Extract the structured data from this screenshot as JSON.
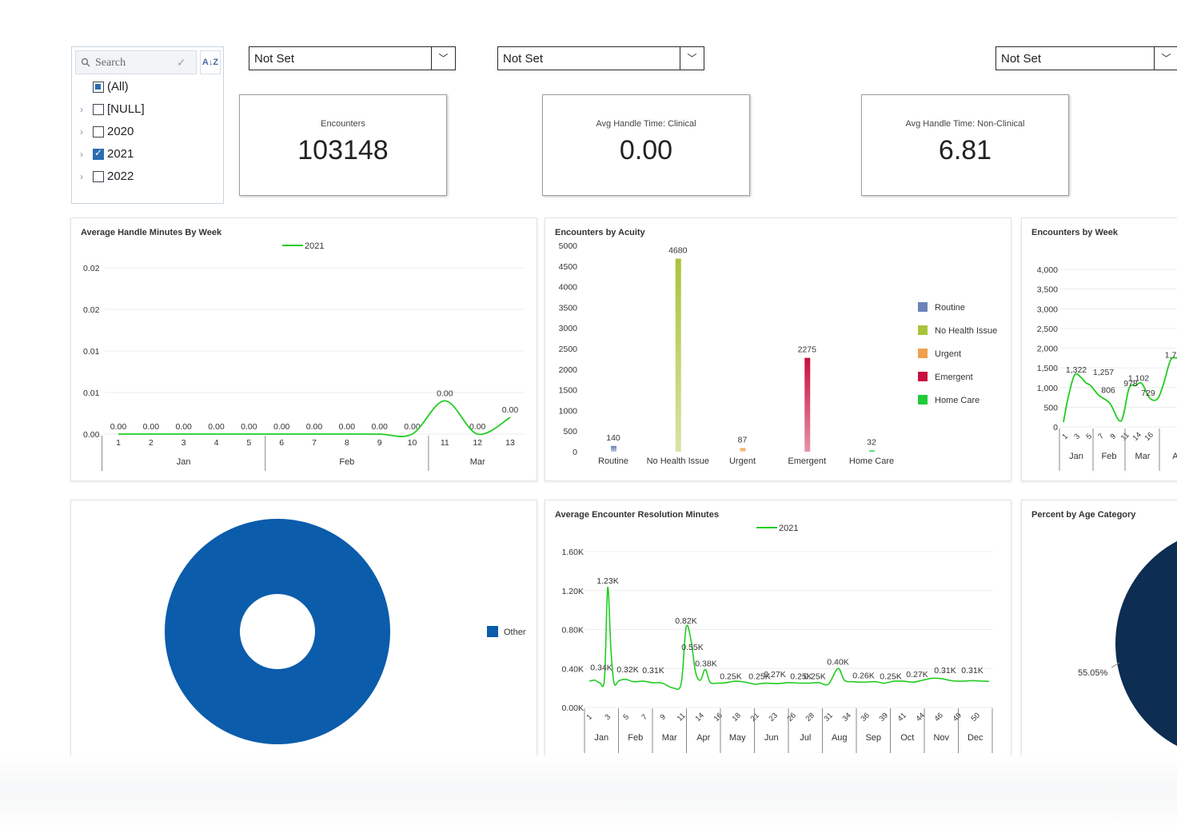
{
  "filter": {
    "search_placeholder": "Search",
    "items": [
      {
        "label": "(All)",
        "state": "partial",
        "expandable": false
      },
      {
        "label": "[NULL]",
        "state": "unchecked",
        "expandable": true
      },
      {
        "label": "2020",
        "state": "unchecked",
        "expandable": true
      },
      {
        "label": "2021",
        "state": "checked",
        "expandable": true
      },
      {
        "label": "2022",
        "state": "unchecked",
        "expandable": true
      }
    ]
  },
  "dropdowns": [
    {
      "value": "Not Set"
    },
    {
      "value": "Not Set"
    },
    {
      "value": "Not Set"
    }
  ],
  "kpis": [
    {
      "title": "Encounters",
      "value": "103148"
    },
    {
      "title": "Avg Handle Time: Clinical",
      "value": "0.00"
    },
    {
      "title": "Avg Handle Time: Non-Clinical",
      "value": "6.81"
    }
  ],
  "charts": {
    "handle": {
      "title": "Average Handle Minutes By Week"
    },
    "acuity": {
      "title": "Encounters by Acuity"
    },
    "week": {
      "title": "Encounters by Week"
    },
    "donut": {
      "title": ""
    },
    "resolution": {
      "title": "Average Encounter Resolution Minutes"
    },
    "age": {
      "title": "Percent by Age Category"
    }
  },
  "colors": {
    "green_line": "#22cc22",
    "donut_blue": "#0b5cab",
    "age_navy": "#0d2d52"
  },
  "chart_data": [
    {
      "id": "handle",
      "type": "line",
      "title": "Average Handle Minutes By Week",
      "series": [
        {
          "name": "2021",
          "values": [
            0,
            0,
            0,
            0,
            0,
            0,
            0,
            0,
            0,
            0,
            0.004,
            0,
            0.002
          ]
        }
      ],
      "x": [
        1,
        2,
        3,
        4,
        5,
        6,
        7,
        8,
        9,
        10,
        11,
        12,
        13
      ],
      "x_groups": [
        {
          "label": "Jan",
          "from": 1,
          "to": 5
        },
        {
          "label": "Feb",
          "from": 6,
          "to": 10
        },
        {
          "label": "Mar",
          "from": 11,
          "to": 13
        }
      ],
      "data_labels": [
        "0.00",
        "0.00",
        "0.00",
        "0.00",
        "0.00",
        "0.00",
        "0.00",
        "0.00",
        "0.00",
        "0.00",
        "0.00",
        "0.00",
        "0.00"
      ],
      "y_ticks": [
        "0.00",
        "0.01",
        "0.01",
        "0.02",
        "0.02"
      ],
      "ylim": [
        0,
        0.02
      ],
      "legend": "top-center"
    },
    {
      "id": "acuity",
      "type": "bar",
      "title": "Encounters by Acuity",
      "categories": [
        "Routine",
        "No Health Issue",
        "Urgent",
        "Emergent",
        "Home Care"
      ],
      "values": [
        140,
        4680,
        87,
        2275,
        32
      ],
      "bar_colors": [
        "#6b82b8",
        "#a8c43a",
        "#f0a04b",
        "#c8103e",
        "#1fcc3a"
      ],
      "y_ticks": [
        0,
        500,
        1000,
        1500,
        2000,
        2500,
        3000,
        3500,
        4000,
        4500,
        5000
      ],
      "ylim": [
        0,
        5000
      ],
      "legend": "right"
    },
    {
      "id": "week",
      "type": "line",
      "title": "Encounters by Week",
      "visible_labels": [
        "1,322",
        "1,257",
        "806",
        "978",
        "1,102",
        "729",
        "1,7"
      ],
      "x_ticks": [
        "1",
        "3",
        "5",
        "7",
        "9",
        "11",
        "14",
        "16"
      ],
      "x_groups": [
        "Jan",
        "Feb",
        "Mar",
        "Ap"
      ],
      "y_ticks": [
        "0",
        "500",
        "1,000",
        "1,500",
        "2,000",
        "2,500",
        "3,000",
        "3,500",
        "4,000"
      ],
      "ylim": [
        0,
        4000
      ]
    },
    {
      "id": "donut",
      "type": "pie",
      "slices": [
        {
          "label": "Other",
          "value": 100
        }
      ],
      "legend": "right"
    },
    {
      "id": "resolution",
      "type": "line",
      "title": "Average Encounter Resolution Minutes",
      "series": [
        {
          "name": "2021"
        }
      ],
      "labels": [
        {
          "text": "1.23K",
          "value": 1230
        },
        {
          "text": "0.34K",
          "value": 340
        },
        {
          "text": "0.32K",
          "value": 320
        },
        {
          "text": "0.31K",
          "value": 310
        },
        {
          "text": "0.82K",
          "value": 820
        },
        {
          "text": "0.55K",
          "value": 550
        },
        {
          "text": "0.38K",
          "value": 380
        },
        {
          "text": "0.25K",
          "value": 250
        },
        {
          "text": "0.25K",
          "value": 250
        },
        {
          "text": "0.27K",
          "value": 270
        },
        {
          "text": "0.25K",
          "value": 250
        },
        {
          "text": "0.25K",
          "value": 250
        },
        {
          "text": "0.40K",
          "value": 400
        },
        {
          "text": "0.26K",
          "value": 260
        },
        {
          "text": "0.25K",
          "value": 250
        },
        {
          "text": "0.27K",
          "value": 270
        },
        {
          "text": "0.31K",
          "value": 310
        },
        {
          "text": "0.31K",
          "value": 310
        }
      ],
      "x_ticks": [
        "1",
        "3",
        "5",
        "7",
        "9",
        "11",
        "14",
        "16",
        "18",
        "21",
        "23",
        "26",
        "28",
        "31",
        "34",
        "36",
        "39",
        "41",
        "44",
        "46",
        "49",
        "50"
      ],
      "x_groups": [
        "Jan",
        "Feb",
        "Mar",
        "Apr",
        "May",
        "Jun",
        "Jul",
        "Aug",
        "Sep",
        "Oct",
        "Nov",
        "Dec"
      ],
      "y_ticks": [
        "0.00K",
        "0.40K",
        "0.80K",
        "1.20K",
        "1.60K"
      ],
      "ylim": [
        0,
        1600
      ],
      "legend": "top-center"
    },
    {
      "id": "age",
      "type": "pie",
      "title": "Percent by Age Category",
      "slices": [
        {
          "label": "55.05%",
          "value": 55.05
        }
      ]
    }
  ]
}
